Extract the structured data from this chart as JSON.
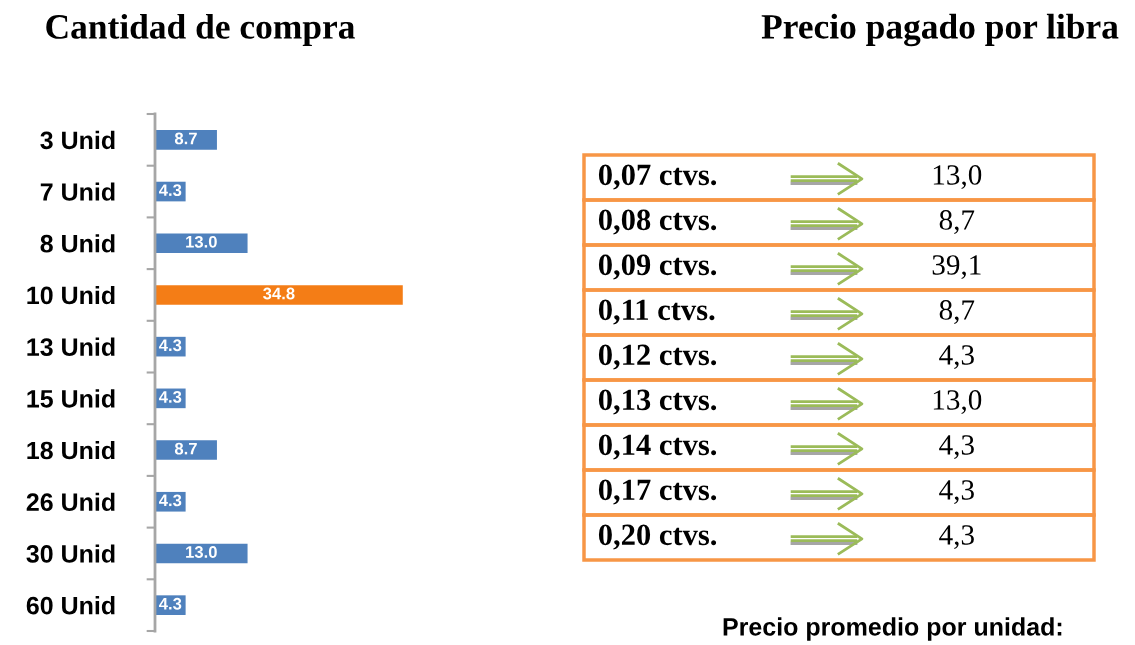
{
  "chart_data": [
    {
      "type": "bar",
      "orientation": "horizontal",
      "title": "Cantidad de compra",
      "categories": [
        "3 Unid",
        "7 Unid",
        "8 Unid",
        "10 Unid",
        "13 Unid",
        "15 Unid",
        "18 Unid",
        "26 Unid",
        "30 Unid",
        "60 Unid"
      ],
      "values": [
        8.7,
        4.3,
        13.0,
        34.8,
        4.3,
        4.3,
        8.7,
        4.3,
        13.0,
        4.3
      ],
      "value_labels": [
        "8.7",
        "4.3",
        "13.0",
        "34.8",
        "4.3",
        "4.3",
        "8.7",
        "4.3",
        "13.0",
        "4.3"
      ],
      "colors": [
        "#4f81bd",
        "#4f81bd",
        "#4f81bd",
        "#f47d16",
        "#4f81bd",
        "#4f81bd",
        "#4f81bd",
        "#4f81bd",
        "#4f81bd",
        "#4f81bd"
      ],
      "tick_labels": "y"
    },
    {
      "type": "other",
      "title": "Precio pagado por libra",
      "categories": [
        "0,07 ctvs.",
        "0,08 ctvs.",
        "0,09 ctvs.",
        "0,11 ctvs.",
        "0,12 ctvs.",
        "0,13 ctvs.",
        "0,14 ctvs.",
        "0,17 ctvs.",
        "0,20 ctvs."
      ],
      "values": [
        13.0,
        8.7,
        39.1,
        8.7,
        4.3,
        13.0,
        4.3,
        4.3,
        4.3
      ],
      "value_labels": [
        "13,0",
        "8,7",
        "39,1",
        "8,7",
        "4,3",
        "13,0",
        "4,3",
        "4,3",
        "4,3"
      ],
      "color": "#f79646",
      "annotations": [
        "Precio promedio por unidad:"
      ]
    }
  ]
}
